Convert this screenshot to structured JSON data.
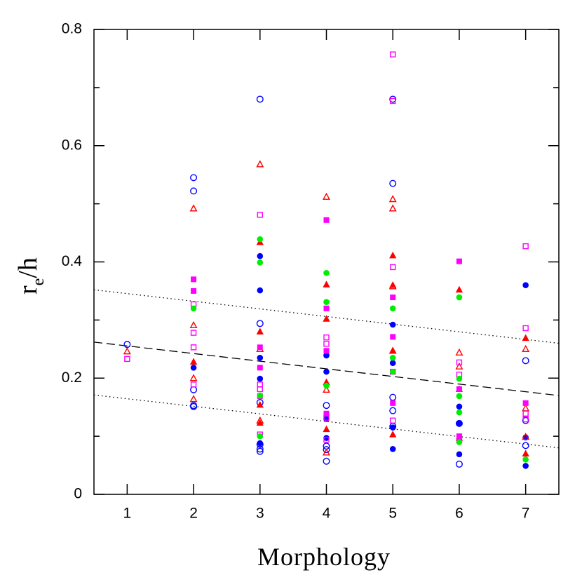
{
  "chart_data": {
    "type": "scatter",
    "x_label": "Morphology",
    "y_label": {
      "base": "r",
      "sub": "e",
      "rest": "/h"
    },
    "xlim": [
      0.5,
      7.5
    ],
    "ylim": [
      0,
      0.8
    ],
    "xticks": [
      1,
      2,
      3,
      4,
      5,
      6,
      7
    ],
    "yticks": [
      0,
      0.2,
      0.4,
      0.6,
      0.8
    ],
    "yminor": [
      0.1,
      0.3,
      0.5,
      0.7
    ],
    "series": [
      {
        "marker": "circle-open",
        "color": "#0000ff",
        "x": [
          1,
          2,
          2,
          2,
          2,
          2,
          3,
          3,
          3,
          3,
          3,
          3,
          4,
          4,
          4,
          4,
          5,
          5,
          5,
          5,
          5,
          6,
          6,
          7,
          7,
          7
        ],
        "values": [
          0.258,
          0.545,
          0.522,
          0.18,
          0.153,
          0.151,
          0.68,
          0.294,
          0.086,
          0.078,
          0.074,
          0.158,
          0.153,
          0.083,
          0.077,
          0.057,
          0.68,
          0.535,
          0.167,
          0.144,
          0.117,
          0.052,
          0.122,
          0.23,
          0.084,
          0.127
        ]
      },
      {
        "marker": "circle-filled",
        "color": "#0000ff",
        "x": [
          2,
          3,
          3,
          3,
          3,
          3,
          4,
          4,
          4,
          4,
          5,
          5,
          5,
          5,
          6,
          6,
          6,
          7,
          7,
          7
        ],
        "values": [
          0.218,
          0.41,
          0.351,
          0.235,
          0.199,
          0.088,
          0.239,
          0.211,
          0.13,
          0.097,
          0.292,
          0.226,
          0.115,
          0.078,
          0.069,
          0.151,
          0.122,
          0.36,
          0.049,
          0.098
        ]
      },
      {
        "marker": "triangle-open",
        "color": "#ff0000",
        "x": [
          1,
          2,
          2,
          2,
          2,
          3,
          3,
          3,
          4,
          4,
          4,
          5,
          5,
          5,
          5,
          6,
          6,
          7,
          7,
          7
        ],
        "values": [
          0.246,
          0.492,
          0.291,
          0.2,
          0.164,
          0.568,
          0.25,
          0.127,
          0.512,
          0.18,
          0.072,
          0.508,
          0.492,
          0.358,
          0.247,
          0.244,
          0.22,
          0.25,
          0.148,
          0.099
        ]
      },
      {
        "marker": "triangle-filled",
        "color": "#ff0000",
        "x": [
          2,
          3,
          3,
          3,
          3,
          4,
          4,
          4,
          4,
          5,
          5,
          5,
          5,
          6,
          6,
          6,
          7,
          7
        ],
        "values": [
          0.228,
          0.434,
          0.28,
          0.154,
          0.123,
          0.361,
          0.302,
          0.193,
          0.112,
          0.411,
          0.36,
          0.247,
          0.103,
          0.352,
          0.181,
          0.097,
          0.269,
          0.07
        ]
      },
      {
        "marker": "square-open",
        "color": "#ff00ff",
        "x": [
          1,
          2,
          2,
          2,
          2,
          3,
          3,
          3,
          3,
          4,
          4,
          4,
          4,
          5,
          5,
          5,
          5,
          5,
          6,
          6,
          6,
          7,
          7,
          7,
          7
        ],
        "values": [
          0.233,
          0.327,
          0.278,
          0.253,
          0.189,
          0.481,
          0.189,
          0.181,
          0.103,
          0.27,
          0.259,
          0.132,
          0.094,
          0.757,
          0.677,
          0.391,
          0.211,
          0.127,
          0.227,
          0.206,
          0.093,
          0.427,
          0.286,
          0.139,
          0.129
        ]
      },
      {
        "marker": "square-filled",
        "color": "#ff00ff",
        "x": [
          2,
          2,
          3,
          3,
          3,
          4,
          4,
          4,
          4,
          5,
          5,
          5,
          6,
          6,
          6,
          7
        ],
        "values": [
          0.37,
          0.35,
          0.253,
          0.218,
          0.169,
          0.472,
          0.32,
          0.247,
          0.139,
          0.339,
          0.271,
          0.157,
          0.401,
          0.181,
          0.1,
          0.157
        ]
      },
      {
        "marker": "circle-filled",
        "color": "#00ee00",
        "x": [
          2,
          3,
          3,
          3,
          3,
          4,
          4,
          4,
          5,
          5,
          5,
          6,
          6,
          6,
          6,
          6,
          7
        ],
        "values": [
          0.32,
          0.439,
          0.399,
          0.17,
          0.1,
          0.381,
          0.331,
          0.187,
          0.32,
          0.235,
          0.211,
          0.339,
          0.199,
          0.169,
          0.141,
          0.09,
          0.06
        ]
      }
    ],
    "lines": [
      {
        "style": "dotted",
        "x": [
          0.5,
          7.5
        ],
        "y": [
          0.352,
          0.26
        ]
      },
      {
        "style": "dashed",
        "x": [
          0.5,
          7.5
        ],
        "y": [
          0.262,
          0.17
        ]
      },
      {
        "style": "dotted",
        "x": [
          0.5,
          7.5
        ],
        "y": [
          0.171,
          0.08
        ]
      }
    ]
  }
}
